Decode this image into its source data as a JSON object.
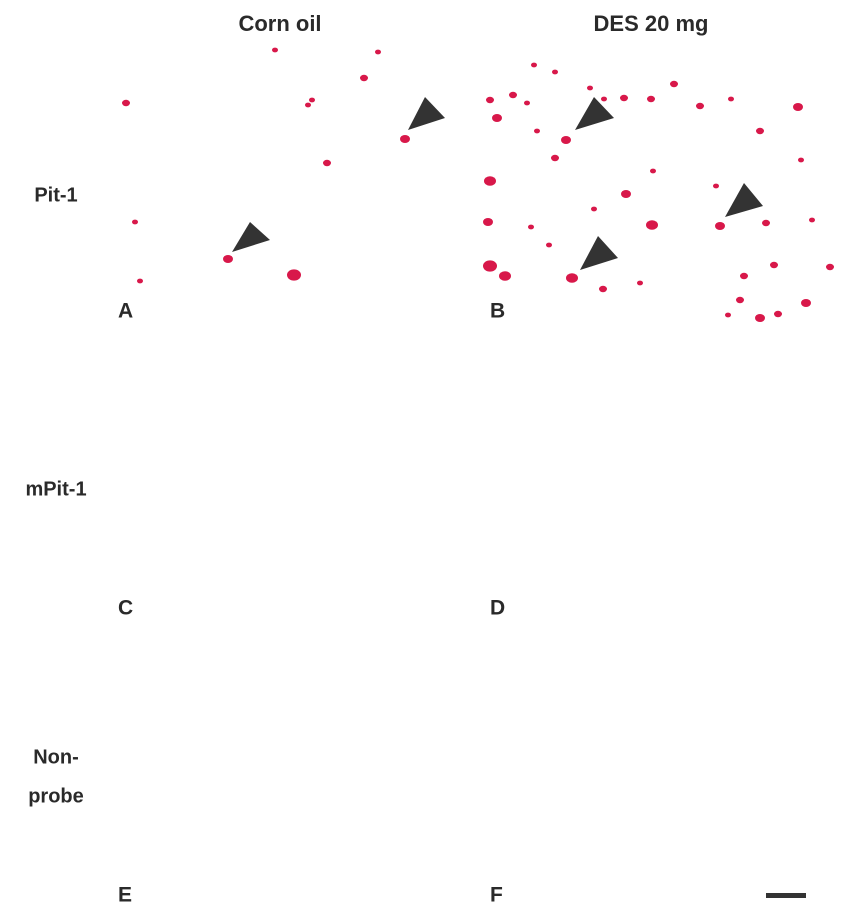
{
  "columns": [
    "Corn oil",
    "DES 20 mg"
  ],
  "rows": [
    {
      "label_lines": [
        "Pit-1"
      ],
      "panels": [
        "A",
        "B"
      ]
    },
    {
      "label_lines": [
        "mPit-1"
      ],
      "panels": [
        "C",
        "D"
      ]
    },
    {
      "label_lines": [
        "Non-",
        "probe"
      ],
      "panels": [
        "E",
        "F"
      ]
    }
  ]
}
